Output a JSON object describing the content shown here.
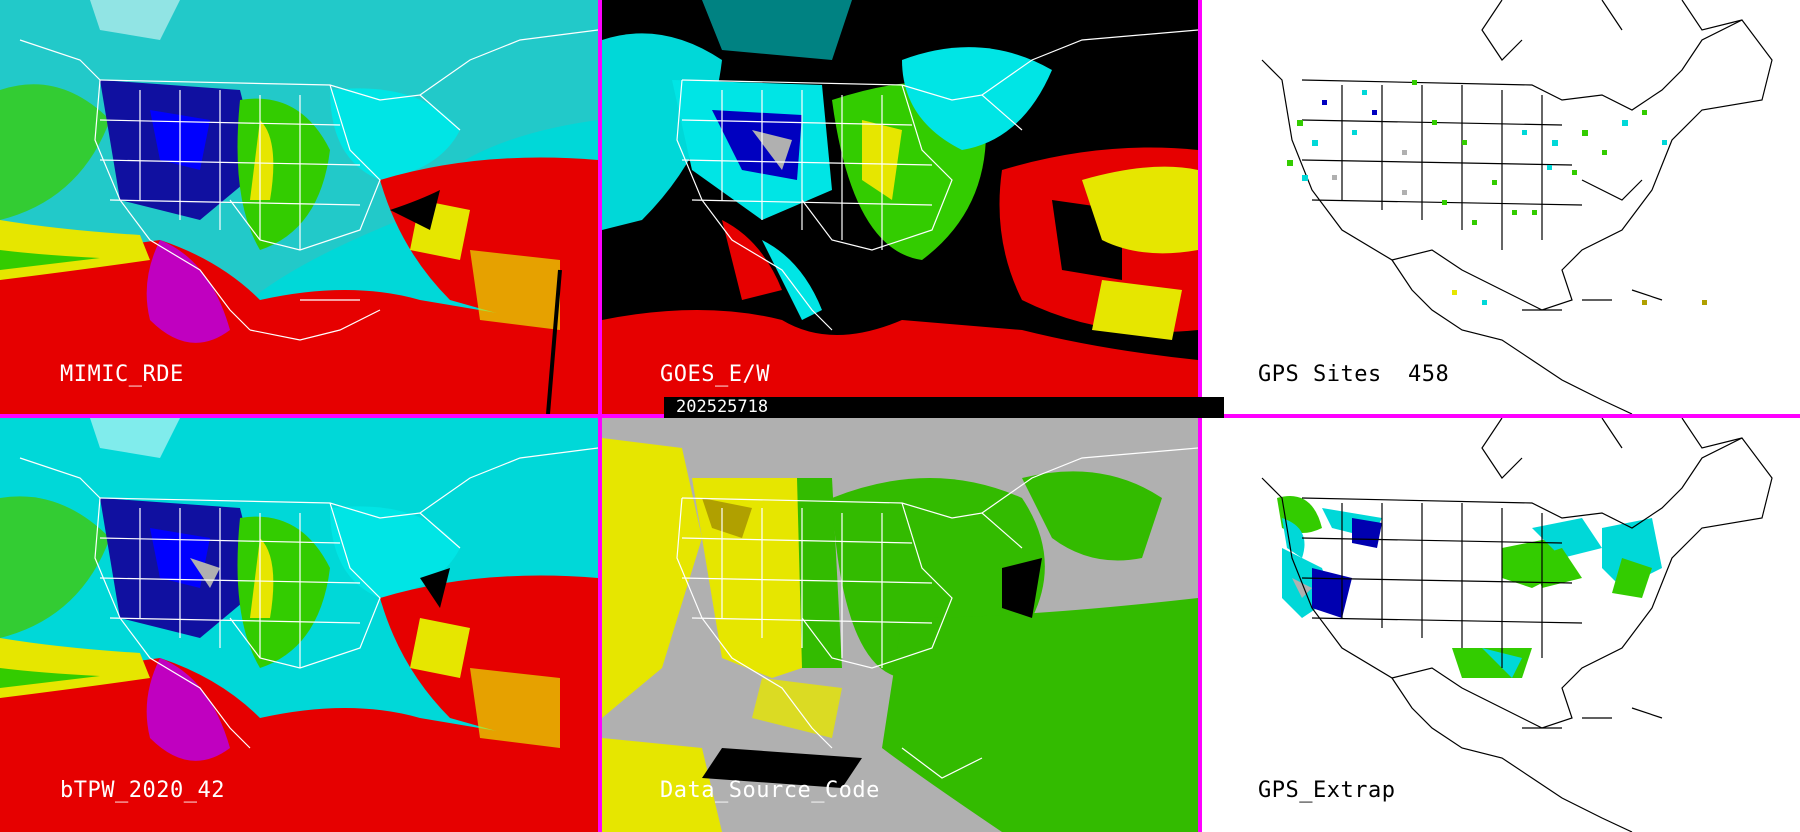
{
  "panels": [
    {
      "label": "MIMIC_RDE"
    },
    {
      "label": "GOES_E/W"
    },
    {
      "label": "GPS Sites",
      "count": "458"
    },
    {
      "label": "bTPW_2020_42"
    },
    {
      "label": "Data_Source_Code"
    },
    {
      "label": "GPS_Extrap"
    }
  ],
  "timestamp": "202525718",
  "colors": {
    "divider": "#ff00ff",
    "cyan": "#00e5e5",
    "blue": "#0000b0",
    "green": "#33cc00",
    "yellow": "#e6e600",
    "red": "#e60000",
    "magenta": "#c000c0",
    "gray": "#b0b0b0"
  }
}
